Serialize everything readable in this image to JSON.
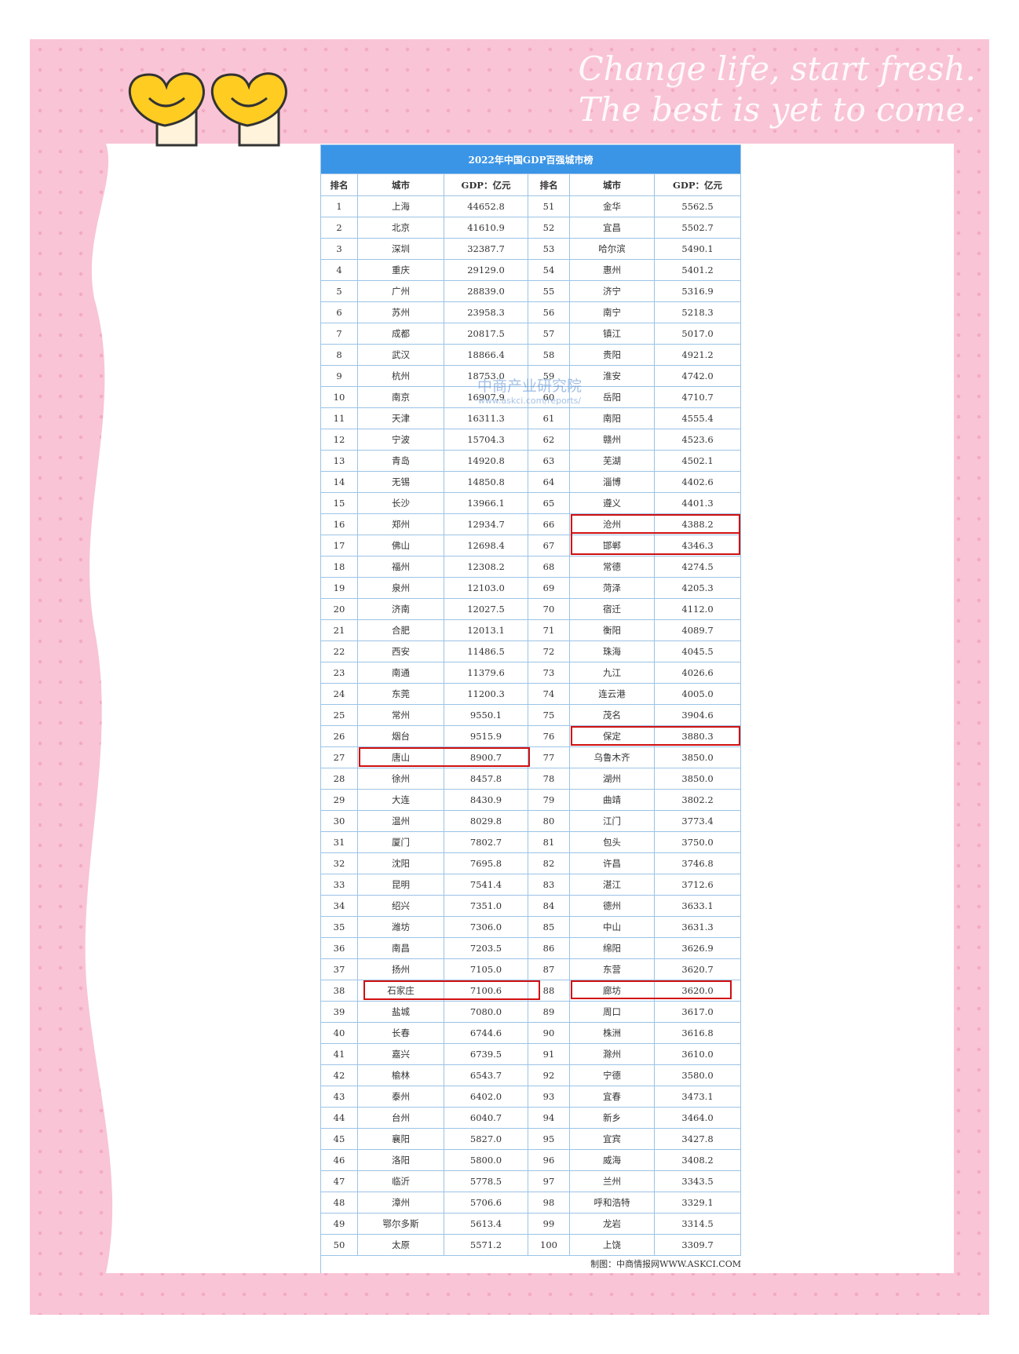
{
  "banner": {
    "line1": "Change life, start fresh.",
    "line2": "The best is yet to come."
  },
  "table": {
    "title": "2022年中国GDP百强城市榜",
    "columns": [
      "排名",
      "城市",
      "GDP：亿元",
      "排名",
      "城市",
      "GDP：亿元"
    ],
    "rows": [
      [
        1,
        "上海",
        "44652.8",
        51,
        "金华",
        "5562.5"
      ],
      [
        2,
        "北京",
        "41610.9",
        52,
        "宜昌",
        "5502.7"
      ],
      [
        3,
        "深圳",
        "32387.7",
        53,
        "哈尔滨",
        "5490.1"
      ],
      [
        4,
        "重庆",
        "29129.0",
        54,
        "惠州",
        "5401.2"
      ],
      [
        5,
        "广州",
        "28839.0",
        55,
        "济宁",
        "5316.9"
      ],
      [
        6,
        "苏州",
        "23958.3",
        56,
        "南宁",
        "5218.3"
      ],
      [
        7,
        "成都",
        "20817.5",
        57,
        "镇江",
        "5017.0"
      ],
      [
        8,
        "武汉",
        "18866.4",
        58,
        "贵阳",
        "4921.2"
      ],
      [
        9,
        "杭州",
        "18753.0",
        59,
        "淮安",
        "4742.0"
      ],
      [
        10,
        "南京",
        "16907.9",
        60,
        "岳阳",
        "4710.7"
      ],
      [
        11,
        "天津",
        "16311.3",
        61,
        "南阳",
        "4555.4"
      ],
      [
        12,
        "宁波",
        "15704.3",
        62,
        "赣州",
        "4523.6"
      ],
      [
        13,
        "青岛",
        "14920.8",
        63,
        "芜湖",
        "4502.1"
      ],
      [
        14,
        "无锡",
        "14850.8",
        64,
        "淄博",
        "4402.6"
      ],
      [
        15,
        "长沙",
        "13966.1",
        65,
        "遵义",
        "4401.3"
      ],
      [
        16,
        "郑州",
        "12934.7",
        66,
        "沧州",
        "4388.2"
      ],
      [
        17,
        "佛山",
        "12698.4",
        67,
        "邯郸",
        "4346.3"
      ],
      [
        18,
        "福州",
        "12308.2",
        68,
        "常德",
        "4274.5"
      ],
      [
        19,
        "泉州",
        "12103.0",
        69,
        "菏泽",
        "4205.3"
      ],
      [
        20,
        "济南",
        "12027.5",
        70,
        "宿迁",
        "4112.0"
      ],
      [
        21,
        "合肥",
        "12013.1",
        71,
        "衡阳",
        "4089.7"
      ],
      [
        22,
        "西安",
        "11486.5",
        72,
        "珠海",
        "4045.5"
      ],
      [
        23,
        "南通",
        "11379.6",
        73,
        "九江",
        "4026.6"
      ],
      [
        24,
        "东莞",
        "11200.3",
        74,
        "连云港",
        "4005.0"
      ],
      [
        25,
        "常州",
        "9550.1",
        75,
        "茂名",
        "3904.6"
      ],
      [
        26,
        "烟台",
        "9515.9",
        76,
        "保定",
        "3880.3"
      ],
      [
        27,
        "唐山",
        "8900.7",
        77,
        "乌鲁木齐",
        "3850.0"
      ],
      [
        28,
        "徐州",
        "8457.8",
        78,
        "湖州",
        "3850.0"
      ],
      [
        29,
        "大连",
        "8430.9",
        79,
        "曲靖",
        "3802.2"
      ],
      [
        30,
        "温州",
        "8029.8",
        80,
        "江门",
        "3773.4"
      ],
      [
        31,
        "厦门",
        "7802.7",
        81,
        "包头",
        "3750.0"
      ],
      [
        32,
        "沈阳",
        "7695.8",
        82,
        "许昌",
        "3746.8"
      ],
      [
        33,
        "昆明",
        "7541.4",
        83,
        "湛江",
        "3712.6"
      ],
      [
        34,
        "绍兴",
        "7351.0",
        84,
        "德州",
        "3633.1"
      ],
      [
        35,
        "潍坊",
        "7306.0",
        85,
        "中山",
        "3631.3"
      ],
      [
        36,
        "南昌",
        "7203.5",
        86,
        "绵阳",
        "3626.9"
      ],
      [
        37,
        "扬州",
        "7105.0",
        87,
        "东营",
        "3620.7"
      ],
      [
        38,
        "石家庄",
        "7100.6",
        88,
        "廊坊",
        "3620.0"
      ],
      [
        39,
        "盐城",
        "7080.0",
        89,
        "周口",
        "3617.0"
      ],
      [
        40,
        "长春",
        "6744.6",
        90,
        "株洲",
        "3616.8"
      ],
      [
        41,
        "嘉兴",
        "6739.5",
        91,
        "滁州",
        "3610.0"
      ],
      [
        42,
        "榆林",
        "6543.7",
        92,
        "宁德",
        "3580.0"
      ],
      [
        43,
        "泰州",
        "6402.0",
        93,
        "宜春",
        "3473.1"
      ],
      [
        44,
        "台州",
        "6040.7",
        94,
        "新乡",
        "3464.0"
      ],
      [
        45,
        "襄阳",
        "5827.0",
        95,
        "宜宾",
        "3427.8"
      ],
      [
        46,
        "洛阳",
        "5800.0",
        96,
        "威海",
        "3408.2"
      ],
      [
        47,
        "临沂",
        "5778.5",
        97,
        "兰州",
        "3343.5"
      ],
      [
        48,
        "漳州",
        "5706.6",
        98,
        "呼和浩特",
        "3329.1"
      ],
      [
        49,
        "鄂尔多斯",
        "5613.4",
        99,
        "龙岩",
        "3314.5"
      ],
      [
        50,
        "太原",
        "5571.2",
        100,
        "上饶",
        "3309.7"
      ]
    ],
    "footer": "制图：中商情报网WWW.ASKCI.COM"
  },
  "watermark": {
    "name": "中商产业研究院",
    "url": "www.askci.com/reports/"
  }
}
